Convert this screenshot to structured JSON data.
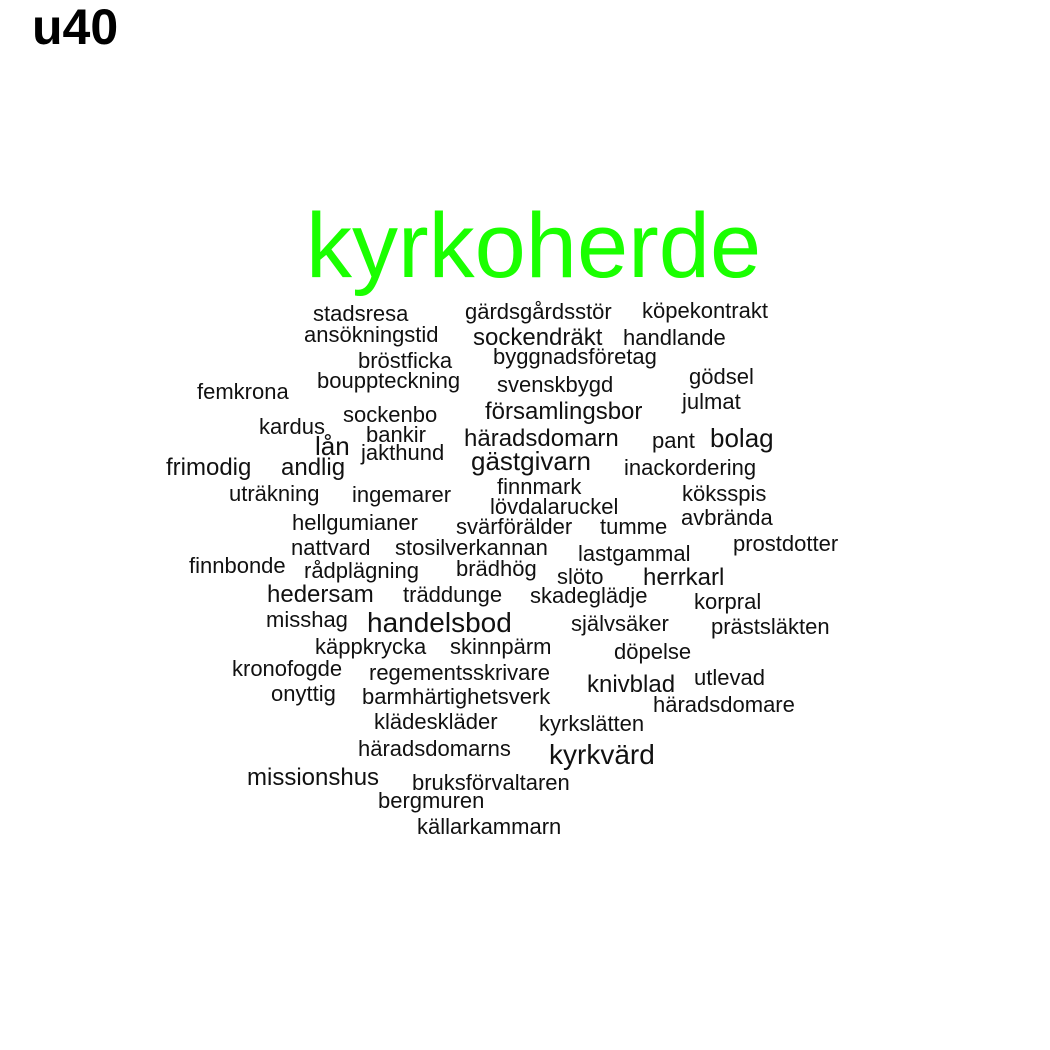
{
  "title": "u40",
  "colors": {
    "highlight": "#1aff00",
    "text": "#111111",
    "background": "#ffffff"
  },
  "word_cloud": {
    "words": [
      {
        "text": "kyrkoherde",
        "weight": 10,
        "highlight": true
      },
      {
        "text": "stadsresa",
        "weight": 1
      },
      {
        "text": "gärdsgårdsstör",
        "weight": 1
      },
      {
        "text": "köpekontrakt",
        "weight": 1
      },
      {
        "text": "ansökningstid",
        "weight": 1
      },
      {
        "text": "sockendräkt",
        "weight": 2
      },
      {
        "text": "handlande",
        "weight": 1
      },
      {
        "text": "bröstficka",
        "weight": 1
      },
      {
        "text": "byggnadsföretag",
        "weight": 1
      },
      {
        "text": "bouppteckning",
        "weight": 1
      },
      {
        "text": "svenskbygd",
        "weight": 1
      },
      {
        "text": "gödsel",
        "weight": 1
      },
      {
        "text": "femkrona",
        "weight": 1
      },
      {
        "text": "julmat",
        "weight": 1
      },
      {
        "text": "sockenbo",
        "weight": 1
      },
      {
        "text": "församlingsbor",
        "weight": 2
      },
      {
        "text": "kardus",
        "weight": 1
      },
      {
        "text": "bankir",
        "weight": 1
      },
      {
        "text": "lån",
        "weight": 2
      },
      {
        "text": "häradsdomarn",
        "weight": 2
      },
      {
        "text": "pant",
        "weight": 1
      },
      {
        "text": "bolag",
        "weight": 2
      },
      {
        "text": "jakthund",
        "weight": 1
      },
      {
        "text": "gästgivarn",
        "weight": 2
      },
      {
        "text": "frimodig",
        "weight": 2
      },
      {
        "text": "andlig",
        "weight": 2
      },
      {
        "text": "inackordering",
        "weight": 1
      },
      {
        "text": "finnmark",
        "weight": 1
      },
      {
        "text": "uträkning",
        "weight": 1
      },
      {
        "text": "ingemarer",
        "weight": 1
      },
      {
        "text": "köksspis",
        "weight": 1
      },
      {
        "text": "lövdalaruckel",
        "weight": 1
      },
      {
        "text": "avbrända",
        "weight": 1
      },
      {
        "text": "hellgumianer",
        "weight": 1
      },
      {
        "text": "svärförälder",
        "weight": 1
      },
      {
        "text": "tumme",
        "weight": 1
      },
      {
        "text": "nattvard",
        "weight": 1
      },
      {
        "text": "stosilverkannan",
        "weight": 1
      },
      {
        "text": "prostdotter",
        "weight": 1
      },
      {
        "text": "lastgammal",
        "weight": 1
      },
      {
        "text": "finnbonde",
        "weight": 1
      },
      {
        "text": "rådplägning",
        "weight": 1
      },
      {
        "text": "brädhög",
        "weight": 1
      },
      {
        "text": "slöto",
        "weight": 1
      },
      {
        "text": "herrkarl",
        "weight": 2
      },
      {
        "text": "hedersam",
        "weight": 2
      },
      {
        "text": "träddunge",
        "weight": 1
      },
      {
        "text": "skadeglädje",
        "weight": 1
      },
      {
        "text": "korpral",
        "weight": 1
      },
      {
        "text": "misshag",
        "weight": 1
      },
      {
        "text": "handelsbod",
        "weight": 3
      },
      {
        "text": "självsäker",
        "weight": 1
      },
      {
        "text": "prästsläkten",
        "weight": 1
      },
      {
        "text": "käppkrycka",
        "weight": 1
      },
      {
        "text": "skinnpärm",
        "weight": 1
      },
      {
        "text": "döpelse",
        "weight": 1
      },
      {
        "text": "kronofogde",
        "weight": 1
      },
      {
        "text": "regementsskrivare",
        "weight": 1
      },
      {
        "text": "utlevad",
        "weight": 1
      },
      {
        "text": "knivblad",
        "weight": 2
      },
      {
        "text": "onyttig",
        "weight": 1
      },
      {
        "text": "barmhärtighetsverk",
        "weight": 1
      },
      {
        "text": "häradsdomare",
        "weight": 1
      },
      {
        "text": "klädeskläder",
        "weight": 1
      },
      {
        "text": "kyrkslätten",
        "weight": 1
      },
      {
        "text": "häradsdomarns",
        "weight": 1
      },
      {
        "text": "kyrkvärd",
        "weight": 3
      },
      {
        "text": "missionshus",
        "weight": 2
      },
      {
        "text": "bruksförvaltaren",
        "weight": 1
      },
      {
        "text": "bergmuren",
        "weight": 1
      },
      {
        "text": "källarkammarn",
        "weight": 1
      }
    ]
  }
}
